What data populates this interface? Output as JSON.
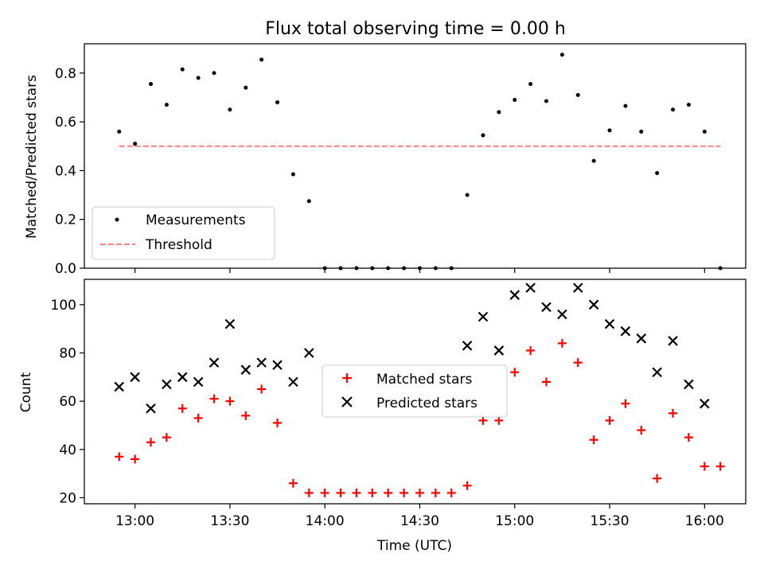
{
  "title": "Flux total observing time = 0.00 h",
  "chart_data": [
    {
      "type": "scatter",
      "ylabel": "Matched/Predicted stars",
      "ylim": [
        0,
        0.92
      ],
      "yticks": [
        "0.0",
        "0.2",
        "0.4",
        "0.6",
        "0.8"
      ],
      "ytick_values": [
        0,
        0.2,
        0.4,
        0.6,
        0.8
      ],
      "legend_position": "lower-left",
      "series": [
        {
          "name": "Measurements",
          "marker": "dot",
          "color": "#000000",
          "x": [
            "12:55",
            "13:00",
            "13:05",
            "13:10",
            "13:15",
            "13:20",
            "13:25",
            "13:30",
            "13:35",
            "13:40",
            "13:45",
            "13:50",
            "13:55",
            "14:00",
            "14:05",
            "14:10",
            "14:15",
            "14:20",
            "14:25",
            "14:30",
            "14:35",
            "14:40",
            "14:45",
            "14:50",
            "14:55",
            "15:00",
            "15:05",
            "15:10",
            "15:15",
            "15:20",
            "15:25",
            "15:30",
            "15:35",
            "15:40",
            "15:45",
            "15:50",
            "15:55",
            "16:00",
            "16:05"
          ],
          "values": [
            0.56,
            0.51,
            0.755,
            0.67,
            0.815,
            0.78,
            0.8,
            0.65,
            0.74,
            0.855,
            0.68,
            0.385,
            0.275,
            0,
            0,
            0,
            0,
            0,
            0,
            0,
            0,
            0,
            0.3,
            0.545,
            0.64,
            0.69,
            0.755,
            0.685,
            0.875,
            0.71,
            0.44,
            0.565,
            0.665,
            0.56,
            0.39,
            0.65,
            0.67,
            0.56,
            0
          ]
        },
        {
          "name": "Threshold",
          "style": "dashed",
          "color": "#ff7f7f",
          "x": [
            "12:55",
            "16:05"
          ],
          "values": [
            0.5,
            0.5
          ]
        }
      ]
    },
    {
      "type": "scatter",
      "xlabel": "Time (UTC)",
      "ylabel": "Count",
      "ylim": [
        17.5,
        110.5
      ],
      "yticks": [
        "20",
        "40",
        "60",
        "80",
        "100"
      ],
      "ytick_values": [
        20,
        40,
        60,
        80,
        100
      ],
      "xticks": [
        "13:00",
        "13:30",
        "14:00",
        "14:30",
        "15:00",
        "15:30",
        "16:00"
      ],
      "xlim": [
        "12:44",
        "16:13"
      ],
      "legend_position": "center",
      "series": [
        {
          "name": "Matched stars",
          "marker": "plus",
          "color": "#ff0000",
          "x": [
            "12:55",
            "13:00",
            "13:05",
            "13:10",
            "13:15",
            "13:20",
            "13:25",
            "13:30",
            "13:35",
            "13:40",
            "13:45",
            "13:50",
            "13:55",
            "14:00",
            "14:05",
            "14:10",
            "14:15",
            "14:20",
            "14:25",
            "14:30",
            "14:35",
            "14:40",
            "14:45",
            "14:50",
            "14:55",
            "15:00",
            "15:05",
            "15:10",
            "15:15",
            "15:20",
            "15:25",
            "15:30",
            "15:35",
            "15:40",
            "15:45",
            "15:50",
            "15:55",
            "16:00",
            "16:05"
          ],
          "values": [
            37,
            36,
            43,
            45,
            57,
            53,
            61,
            60,
            54,
            65,
            51,
            26,
            22,
            22,
            22,
            22,
            22,
            22,
            22,
            22,
            22,
            22,
            25,
            52,
            52,
            72,
            81,
            68,
            84,
            76,
            44,
            52,
            59,
            48,
            28,
            55,
            45,
            33,
            33
          ]
        },
        {
          "name": "Predicted stars",
          "marker": "x",
          "color": "#000000",
          "x": [
            "12:55",
            "13:00",
            "13:05",
            "13:10",
            "13:15",
            "13:20",
            "13:25",
            "13:30",
            "13:35",
            "13:40",
            "13:45",
            "13:50",
            "13:55",
            "14:45",
            "14:50",
            "14:55",
            "15:00",
            "15:05",
            "15:10",
            "15:15",
            "15:20",
            "15:25",
            "15:30",
            "15:35",
            "15:40",
            "15:45",
            "15:50",
            "15:55",
            "16:00"
          ],
          "values": [
            66,
            70,
            57,
            67,
            70,
            68,
            76,
            92,
            73,
            76,
            75,
            68,
            80,
            83,
            95,
            81,
            104,
            107,
            99,
            96,
            107,
            100,
            92,
            89,
            86,
            72,
            85,
            67,
            59
          ]
        }
      ]
    }
  ]
}
